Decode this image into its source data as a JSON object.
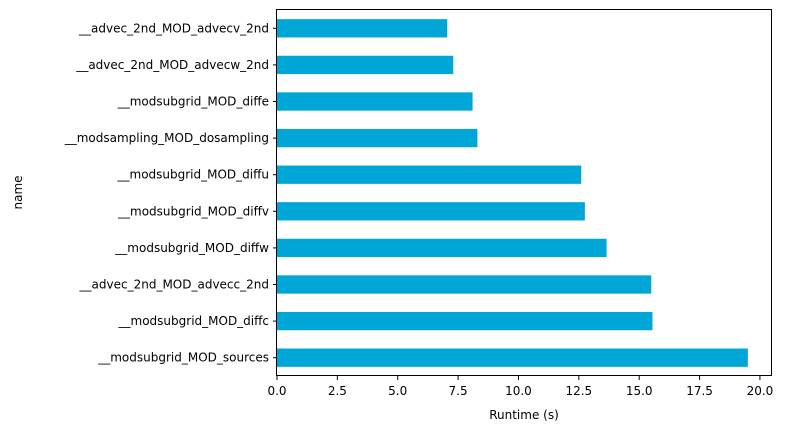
{
  "chart_data": {
    "type": "bar",
    "orientation": "horizontal",
    "title": "",
    "xlabel": "Runtime (s)",
    "ylabel": "name",
    "xlim": [
      0,
      20.5
    ],
    "xticks": [
      0.0,
      2.5,
      5.0,
      7.5,
      10.0,
      12.5,
      15.0,
      17.5,
      20.0
    ],
    "xtick_labels": [
      "0.0",
      "2.5",
      "5.0",
      "7.5",
      "10.0",
      "12.5",
      "15.0",
      "17.5",
      "20.0"
    ],
    "bar_color": "#00a6d6",
    "grid": false,
    "categories": [
      "__advec_2nd_MOD_advecv_2nd",
      "__advec_2nd_MOD_advecw_2nd",
      "__modsubgrid_MOD_diffe",
      "__modsampling_MOD_dosampling",
      "__modsubgrid_MOD_diffu",
      "__modsubgrid_MOD_diffv",
      "__modsubgrid_MOD_diffw",
      "__advec_2nd_MOD_advecc_2nd",
      "__modsubgrid_MOD_diffc",
      "__modsubgrid_MOD_sources"
    ],
    "values": [
      7.05,
      7.3,
      8.1,
      8.3,
      12.6,
      12.75,
      13.65,
      15.5,
      15.55,
      19.5
    ]
  }
}
